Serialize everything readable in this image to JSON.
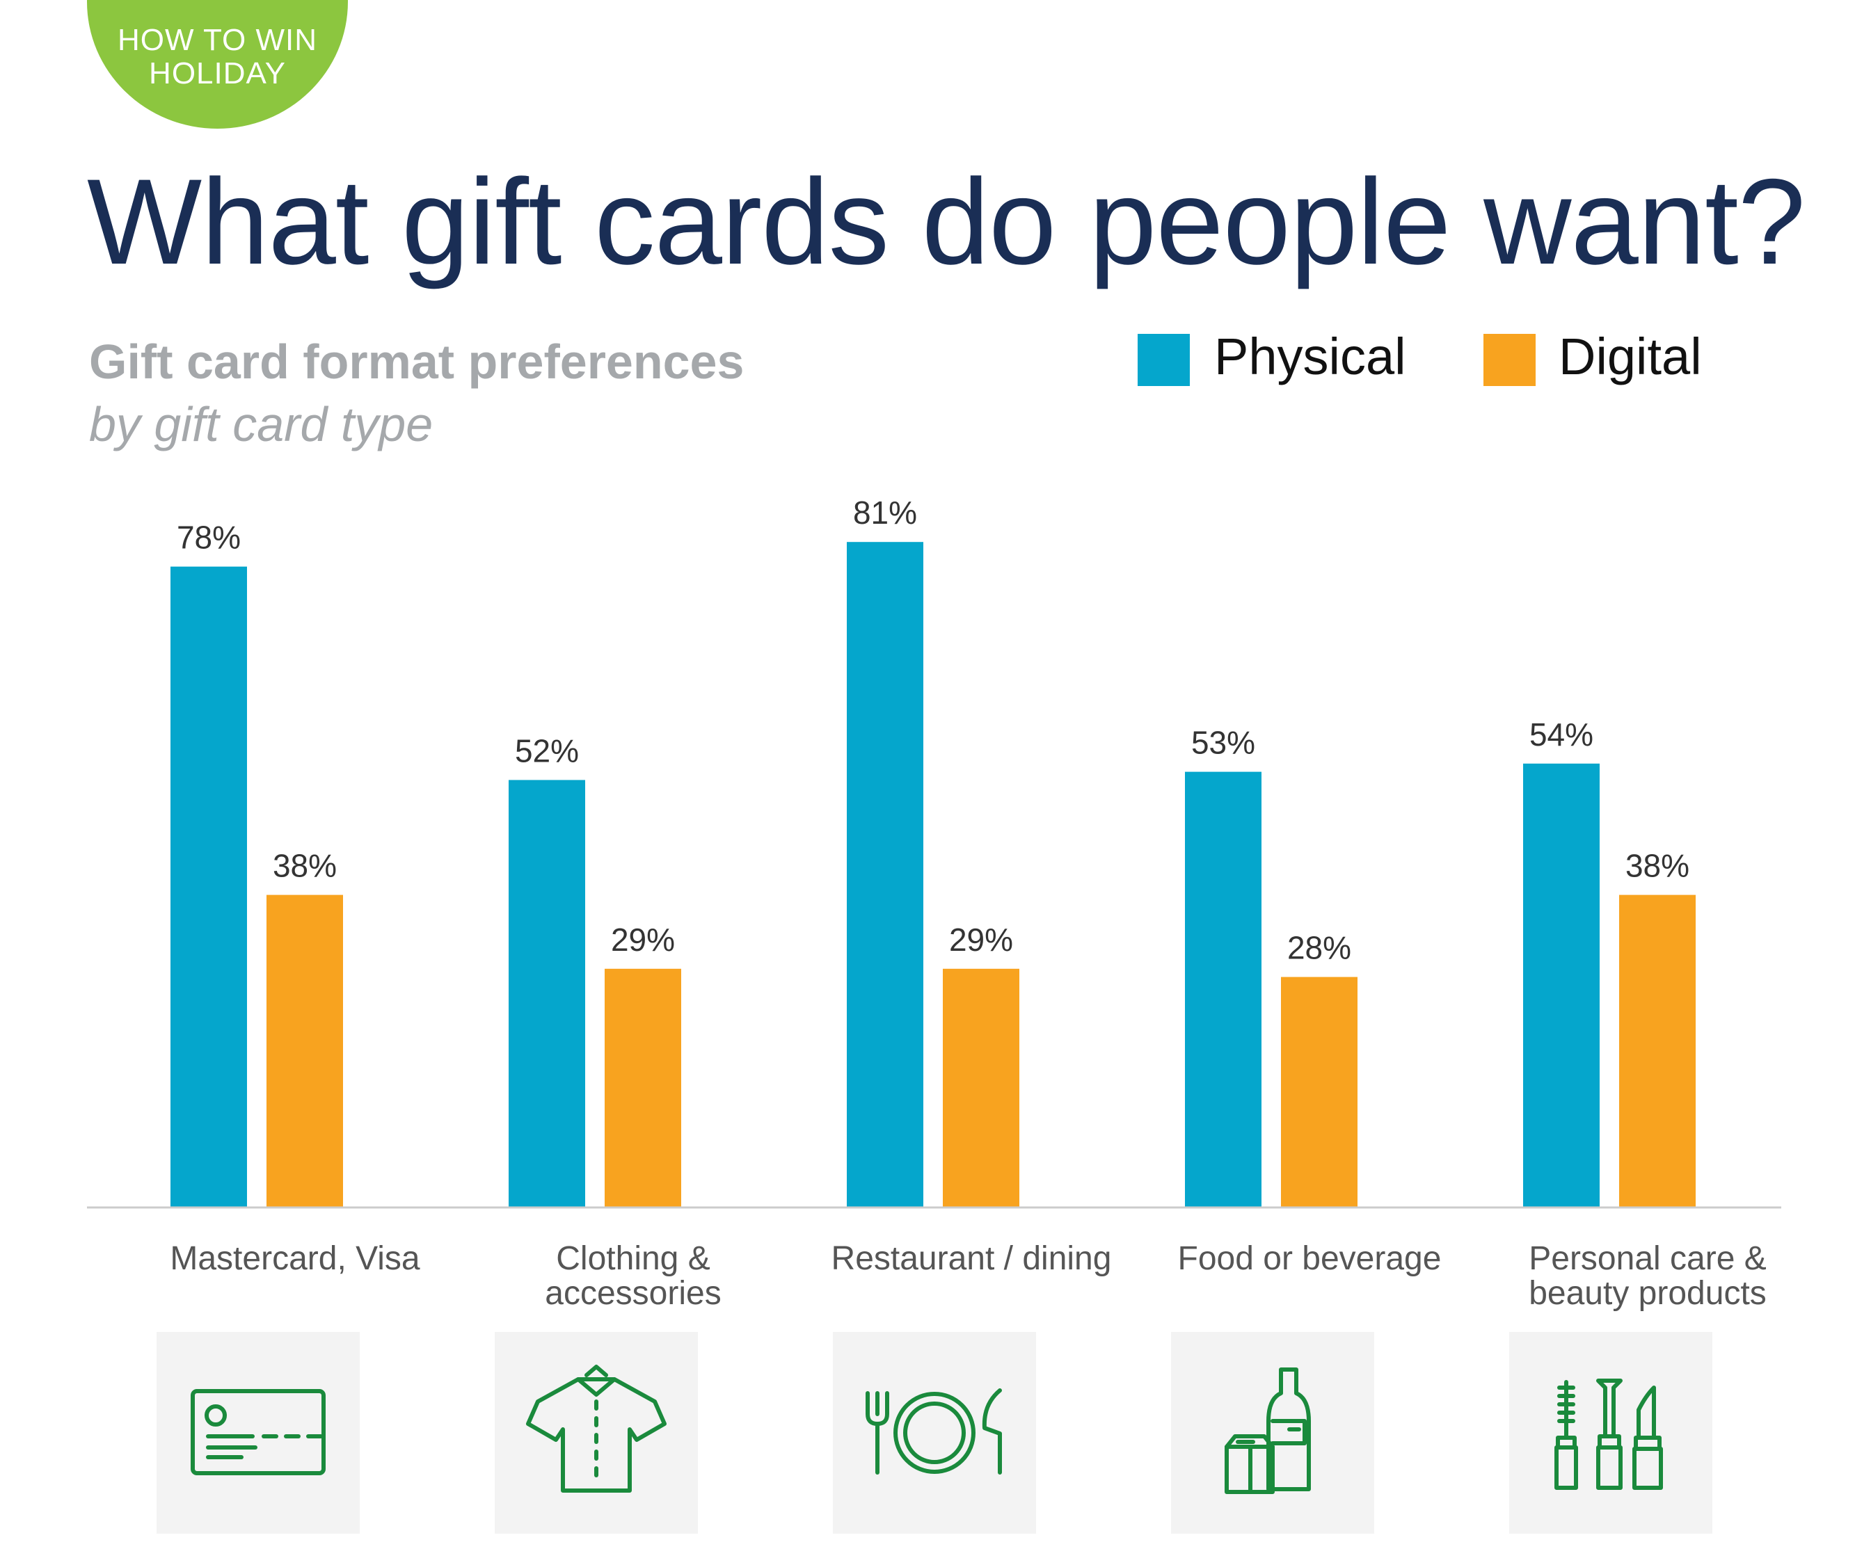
{
  "badge": {
    "line1": "HOW TO WIN",
    "line2": "HOLIDAY"
  },
  "headline": "What gift cards do people want?",
  "colors": {
    "physical": "#05a6cc",
    "digital": "#f8a31f",
    "icon": "#1a8a3c",
    "badge": "#8cc63f"
  },
  "chart_data": {
    "type": "bar",
    "title": "Gift card format preferences",
    "subtitle": "by gift card type",
    "categories": [
      [
        "Mastercard, Visa"
      ],
      [
        "Clothing &",
        "accessories"
      ],
      [
        "Restaurant / dining"
      ],
      [
        "Food or beverage"
      ],
      [
        "Personal care &",
        "beauty products"
      ]
    ],
    "series": [
      {
        "name": "Physical",
        "values": [
          78,
          52,
          81,
          53,
          54
        ],
        "labels": [
          "78%",
          "52%",
          "81%",
          "53%",
          "54%"
        ]
      },
      {
        "name": "Digital",
        "values": [
          38,
          29,
          29,
          28,
          38
        ],
        "labels": [
          "38%",
          "29%",
          "29%",
          "28%",
          "38%"
        ]
      }
    ],
    "ylim": [
      0,
      100
    ],
    "grid": false,
    "legend": "top-right"
  },
  "icons": [
    "credit-card-icon",
    "shirt-icon",
    "plate-cutlery-icon",
    "groceries-icon",
    "cosmetics-icon"
  ]
}
